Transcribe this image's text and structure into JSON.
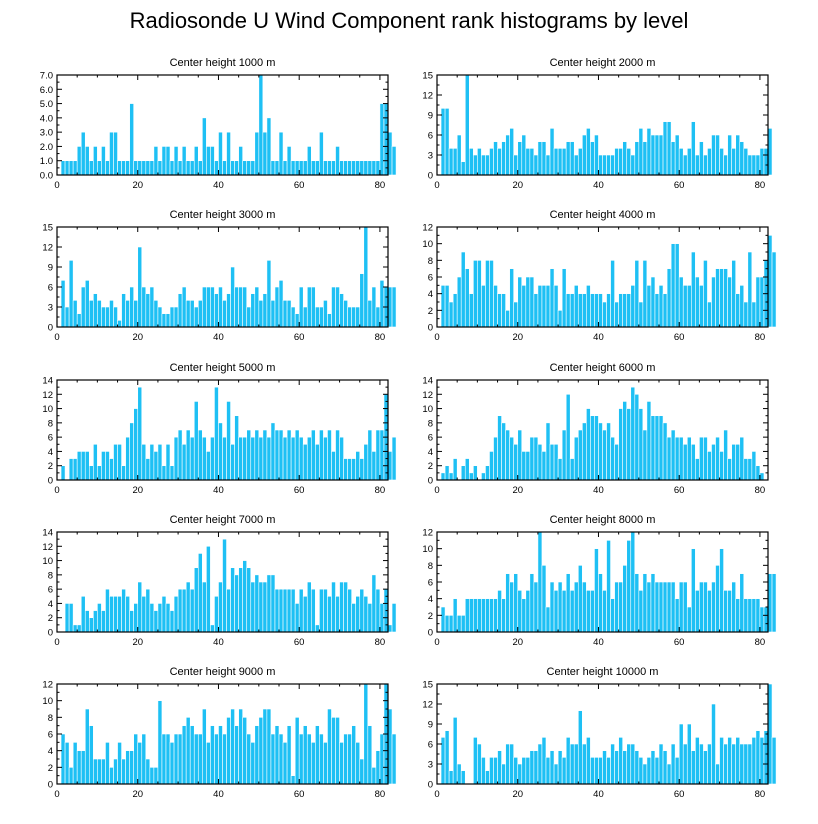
{
  "title": "Radiosonde U Wind Component rank histograms by level",
  "colors": {
    "bar": "#1ec0f4",
    "bar_edge": "#ffffff",
    "axis": "#000000"
  },
  "chart_data": [
    {
      "type": "bar",
      "title": "Center height 1000 m",
      "xlim": [
        0,
        82
      ],
      "ylim": [
        0,
        7
      ],
      "xticks": [
        0,
        20,
        40,
        60,
        80
      ],
      "yticks": [
        0,
        1,
        2,
        3,
        4,
        5,
        6,
        7
      ],
      "ytick_labels": [
        "0.0",
        "1.0",
        "2.0",
        "3.0",
        "4.0",
        "5.0",
        "6.0",
        "7.0"
      ],
      "values": [
        0,
        1,
        1,
        1,
        1,
        2,
        3,
        2,
        1,
        2,
        1,
        2,
        1,
        3,
        3,
        1,
        1,
        1,
        5,
        1,
        1,
        1,
        1,
        1,
        2,
        1,
        2,
        2,
        1,
        2,
        1,
        2,
        1,
        1,
        2,
        1,
        4,
        2,
        2,
        1,
        3,
        1,
        3,
        1,
        1,
        2,
        1,
        1,
        1,
        3,
        7,
        3,
        4,
        1,
        1,
        3,
        1,
        2,
        1,
        1,
        1,
        1,
        2,
        1,
        1,
        3,
        1,
        1,
        1,
        2,
        1,
        1,
        1,
        1,
        1,
        1,
        1,
        1,
        1,
        1,
        5,
        5,
        3,
        2
      ]
    },
    {
      "type": "bar",
      "title": "Center height 2000 m",
      "xlim": [
        0,
        82
      ],
      "ylim": [
        0,
        15
      ],
      "xticks": [
        0,
        20,
        40,
        60,
        80
      ],
      "yticks": [
        0,
        3,
        6,
        9,
        12,
        15
      ],
      "ytick_labels": [
        "0",
        "3",
        "6",
        "9",
        "12",
        "15"
      ],
      "values": [
        0,
        10,
        10,
        4,
        4,
        6,
        2,
        15,
        4,
        3,
        4,
        3,
        3,
        4,
        5,
        4,
        5,
        6,
        7,
        3,
        5,
        6,
        4,
        4,
        3,
        5,
        5,
        3,
        7,
        4,
        4,
        4,
        5,
        5,
        3,
        4,
        6,
        7,
        5,
        6,
        3,
        3,
        3,
        3,
        4,
        4,
        5,
        4,
        3,
        5,
        7,
        5,
        7,
        6,
        6,
        6,
        8,
        8,
        5,
        6,
        4,
        3,
        4,
        8,
        3,
        5,
        3,
        4,
        6,
        6,
        4,
        3,
        6,
        4,
        6,
        5,
        4,
        3,
        3,
        3,
        4,
        4,
        7
      ]
    },
    {
      "type": "bar",
      "title": "Center height 3000 m",
      "xlim": [
        0,
        82
      ],
      "ylim": [
        0,
        15
      ],
      "xticks": [
        0,
        20,
        40,
        60,
        80
      ],
      "yticks": [
        0,
        3,
        6,
        9,
        12,
        15
      ],
      "ytick_labels": [
        "0",
        "3",
        "6",
        "9",
        "12",
        "15"
      ],
      "values": [
        0,
        7,
        3,
        10,
        4,
        2,
        6,
        7,
        4,
        5,
        4,
        3,
        3,
        4,
        3,
        1,
        5,
        4,
        6,
        4,
        12,
        6,
        5,
        6,
        4,
        3,
        2,
        2,
        3,
        3,
        5,
        6,
        4,
        4,
        3,
        4,
        6,
        6,
        6,
        5,
        6,
        4,
        5,
        9,
        6,
        6,
        6,
        3,
        5,
        6,
        4,
        5,
        10,
        4,
        6,
        7,
        4,
        4,
        3,
        2,
        6,
        3,
        6,
        6,
        3,
        3,
        4,
        2,
        6,
        6,
        5,
        4,
        3,
        3,
        3,
        8,
        15,
        4,
        6,
        3,
        7,
        6,
        6,
        6
      ]
    },
    {
      "type": "bar",
      "title": "Center height 4000 m",
      "xlim": [
        0,
        82
      ],
      "ylim": [
        0,
        12
      ],
      "xticks": [
        0,
        20,
        40,
        60,
        80
      ],
      "yticks": [
        0,
        2,
        4,
        6,
        8,
        10,
        12
      ],
      "ytick_labels": [
        "0",
        "2",
        "4",
        "6",
        "8",
        "10",
        "12"
      ],
      "values": [
        0,
        5,
        5,
        3,
        4,
        6,
        9,
        7,
        4,
        8,
        8,
        5,
        8,
        8,
        5,
        4,
        4,
        2,
        7,
        3,
        6,
        5,
        6,
        6,
        4,
        5,
        5,
        5,
        7,
        5,
        2,
        7,
        4,
        4,
        5,
        4,
        4,
        5,
        4,
        4,
        4,
        3,
        4,
        8,
        3,
        4,
        4,
        4,
        5,
        8,
        3,
        8,
        5,
        6,
        4,
        5,
        4,
        7,
        10,
        10,
        6,
        5,
        5,
        9,
        6,
        5,
        8,
        3,
        6,
        7,
        7,
        7,
        6,
        8,
        4,
        5,
        3,
        9,
        3,
        6,
        6,
        8,
        11,
        9
      ]
    },
    {
      "type": "bar",
      "title": "Center height 5000 m",
      "xlim": [
        0,
        82
      ],
      "ylim": [
        0,
        14
      ],
      "xticks": [
        0,
        20,
        40,
        60,
        80
      ],
      "yticks": [
        0,
        2,
        4,
        6,
        8,
        10,
        12,
        14
      ],
      "ytick_labels": [
        "0",
        "2",
        "4",
        "6",
        "8",
        "10",
        "12",
        "14"
      ],
      "values": [
        0,
        2,
        0,
        3,
        3,
        4,
        4,
        4,
        2,
        5,
        2,
        4,
        4,
        3,
        5,
        5,
        2,
        6,
        8,
        10,
        13,
        5,
        3,
        5,
        4,
        5,
        2,
        5,
        2,
        6,
        7,
        5,
        7,
        6,
        11,
        7,
        6,
        4,
        6,
        13,
        8,
        6,
        11,
        5,
        9,
        6,
        6,
        7,
        6,
        7,
        6,
        7,
        6,
        8,
        7,
        7,
        6,
        7,
        6,
        7,
        6,
        5,
        6,
        7,
        5,
        7,
        6,
        7,
        4,
        7,
        6,
        3,
        3,
        3,
        4,
        3,
        5,
        7,
        4,
        7,
        7,
        12,
        4,
        6
      ]
    },
    {
      "type": "bar",
      "title": "Center height 6000 m",
      "xlim": [
        0,
        82
      ],
      "ylim": [
        0,
        14
      ],
      "xticks": [
        0,
        20,
        40,
        60,
        80
      ],
      "yticks": [
        0,
        2,
        4,
        6,
        8,
        10,
        12,
        14
      ],
      "ytick_labels": [
        "0",
        "2",
        "4",
        "6",
        "8",
        "10",
        "12",
        "14"
      ],
      "values": [
        0,
        1,
        2,
        1,
        3,
        0,
        2,
        3,
        1,
        2,
        0,
        1,
        2,
        4,
        6,
        9,
        8,
        7,
        6,
        5,
        7,
        4,
        4,
        6,
        6,
        5,
        4,
        8,
        5,
        5,
        3,
        7,
        12,
        3,
        6,
        7,
        8,
        10,
        9,
        9,
        8,
        7,
        8,
        6,
        5,
        10,
        11,
        10,
        13,
        12,
        10,
        7,
        11,
        9,
        9,
        9,
        8,
        6,
        7,
        6,
        6,
        5,
        6,
        5,
        3,
        6,
        6,
        4,
        5,
        6,
        4,
        7,
        3,
        5,
        5,
        6,
        3,
        3,
        4,
        2,
        1,
        0
      ]
    },
    {
      "type": "bar",
      "title": "Center height 7000 m",
      "xlim": [
        0,
        82
      ],
      "ylim": [
        0,
        14
      ],
      "xticks": [
        0,
        20,
        40,
        60,
        80
      ],
      "yticks": [
        0,
        2,
        4,
        6,
        8,
        10,
        12,
        14
      ],
      "ytick_labels": [
        "0",
        "2",
        "4",
        "6",
        "8",
        "10",
        "12",
        "14"
      ],
      "values": [
        0,
        0,
        4,
        4,
        1,
        1,
        5,
        3,
        2,
        3,
        4,
        3,
        6,
        5,
        5,
        5,
        6,
        5,
        3,
        4,
        7,
        5,
        6,
        4,
        3,
        4,
        5,
        4,
        3,
        5,
        6,
        6,
        7,
        6,
        9,
        11,
        7,
        12,
        1,
        5,
        7,
        13,
        6,
        9,
        8,
        9,
        10,
        9,
        7,
        8,
        7,
        7,
        8,
        8,
        6,
        6,
        6,
        6,
        6,
        4,
        6,
        5,
        7,
        6,
        1,
        6,
        6,
        5,
        7,
        5,
        7,
        7,
        6,
        4,
        5,
        6,
        5,
        4,
        8,
        6,
        4,
        6,
        1,
        4
      ]
    },
    {
      "type": "bar",
      "title": "Center height 8000 m",
      "xlim": [
        0,
        82
      ],
      "ylim": [
        0,
        12
      ],
      "xticks": [
        0,
        20,
        40,
        60,
        80
      ],
      "yticks": [
        0,
        2,
        4,
        6,
        8,
        10,
        12
      ],
      "ytick_labels": [
        "0",
        "2",
        "4",
        "6",
        "8",
        "10",
        "12"
      ],
      "values": [
        0,
        3,
        2,
        2,
        4,
        2,
        2,
        4,
        4,
        4,
        4,
        4,
        4,
        4,
        4,
        5,
        4,
        7,
        6,
        7,
        5,
        4,
        5,
        7,
        6,
        12,
        8,
        3,
        6,
        5,
        6,
        5,
        7,
        5,
        6,
        8,
        6,
        5,
        5,
        10,
        7,
        5,
        11,
        4,
        6,
        6,
        8,
        11,
        12,
        7,
        5,
        7,
        6,
        7,
        6,
        6,
        6,
        6,
        6,
        4,
        6,
        6,
        3,
        10,
        5,
        6,
        6,
        5,
        6,
        8,
        10,
        5,
        5,
        6,
        4,
        7,
        4,
        4,
        4,
        4,
        3,
        3,
        7,
        7
      ]
    },
    {
      "type": "bar",
      "title": "Center height 9000 m",
      "xlim": [
        0,
        82
      ],
      "ylim": [
        0,
        12
      ],
      "xticks": [
        0,
        20,
        40,
        60,
        80
      ],
      "yticks": [
        0,
        2,
        4,
        6,
        8,
        10,
        12
      ],
      "ytick_labels": [
        "0",
        "2",
        "4",
        "6",
        "8",
        "10",
        "12"
      ],
      "values": [
        0,
        6,
        5,
        2,
        5,
        4,
        4,
        9,
        7,
        3,
        3,
        3,
        5,
        2,
        3,
        5,
        3,
        4,
        4,
        6,
        5,
        6,
        3,
        2,
        2,
        10,
        6,
        6,
        5,
        6,
        6,
        7,
        8,
        7,
        6,
        6,
        9,
        5,
        7,
        6,
        7,
        6,
        8,
        9,
        7,
        9,
        8,
        6,
        5,
        7,
        8,
        9,
        9,
        6,
        7,
        6,
        5,
        7,
        1,
        8,
        6,
        7,
        6,
        5,
        7,
        6,
        5,
        9,
        8,
        8,
        5,
        6,
        6,
        7,
        5,
        3,
        12,
        7,
        2,
        4,
        6,
        12,
        9,
        6
      ]
    },
    {
      "type": "bar",
      "title": "Center height 10000 m",
      "xlim": [
        0,
        82
      ],
      "ylim": [
        0,
        15
      ],
      "xticks": [
        0,
        20,
        40,
        60,
        80
      ],
      "yticks": [
        0,
        3,
        6,
        9,
        12,
        15
      ],
      "ytick_labels": [
        "0",
        "3",
        "6",
        "9",
        "12",
        "15"
      ],
      "values": [
        0,
        7,
        8,
        2,
        10,
        3,
        2,
        0,
        0,
        7,
        6,
        4,
        2,
        4,
        4,
        5,
        3,
        6,
        6,
        4,
        3,
        4,
        4,
        5,
        5,
        6,
        7,
        4,
        5,
        3,
        5,
        4,
        7,
        6,
        6,
        11,
        6,
        7,
        4,
        4,
        4,
        5,
        4,
        6,
        5,
        7,
        5,
        6,
        6,
        5,
        4,
        3,
        4,
        5,
        4,
        6,
        5,
        3,
        6,
        4,
        9,
        6,
        9,
        5,
        7,
        6,
        5,
        6,
        12,
        3,
        7,
        6,
        7,
        6,
        7,
        6,
        6,
        6,
        7,
        8,
        7,
        8,
        15,
        7
      ]
    }
  ]
}
